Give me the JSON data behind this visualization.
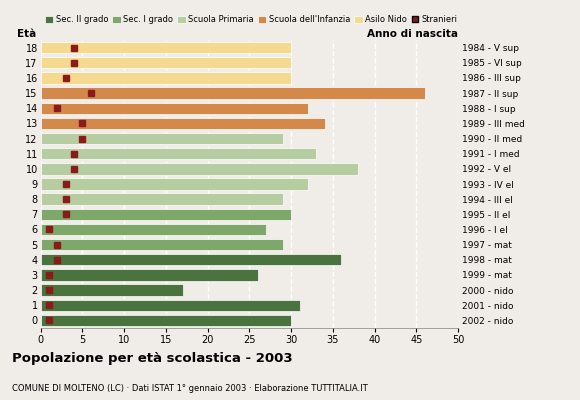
{
  "ages": [
    18,
    17,
    16,
    15,
    14,
    13,
    12,
    11,
    10,
    9,
    8,
    7,
    6,
    5,
    4,
    3,
    2,
    1,
    0
  ],
  "years": [
    "1984 - V sup",
    "1985 - VI sup",
    "1986 - III sup",
    "1987 - II sup",
    "1988 - I sup",
    "1989 - III med",
    "1990 - II med",
    "1991 - I med",
    "1992 - V el",
    "1993 - IV el",
    "1994 - III el",
    "1995 - II el",
    "1996 - I el",
    "1997 - mat",
    "1998 - mat",
    "1999 - mat",
    "2000 - nido",
    "2001 - nido",
    "2002 - nido"
  ],
  "values": [
    30,
    31,
    17,
    26,
    36,
    29,
    27,
    30,
    29,
    32,
    38,
    33,
    29,
    34,
    32,
    46,
    30,
    30,
    30
  ],
  "stranieri": [
    1,
    1,
    1,
    1,
    2,
    2,
    1,
    3,
    3,
    3,
    4,
    4,
    5,
    5,
    2,
    6,
    3,
    4,
    4
  ],
  "bar_colors": [
    "#4a7340",
    "#4a7340",
    "#4a7340",
    "#4a7340",
    "#4a7340",
    "#7da869",
    "#7da869",
    "#7da869",
    "#b5cda0",
    "#b5cda0",
    "#b5cda0",
    "#b5cda0",
    "#b5cda0",
    "#d4894a",
    "#d4894a",
    "#d4894a",
    "#f5d98e",
    "#f5d98e",
    "#f5d98e"
  ],
  "stranieri_color": "#8b1a1a",
  "legend_labels": [
    "Sec. II grado",
    "Sec. I grado",
    "Scuola Primaria",
    "Scuola dell'Infanzia",
    "Asilo Nido",
    "Stranieri"
  ],
  "legend_colors": [
    "#4a7340",
    "#7da869",
    "#b5cda0",
    "#d4894a",
    "#f5d98e",
    "#8b1a1a"
  ],
  "title": "Popolazione per età scolastica - 2003",
  "subtitle": "COMUNE DI MOLTENO (LC) · Dati ISTAT 1° gennaio 2003 · Elaborazione TUTTITALIA.IT",
  "ylabel_eta": "Età",
  "ylabel_anno": "Anno di nascita",
  "xlim": [
    0,
    50
  ],
  "xticks": [
    0,
    5,
    10,
    15,
    20,
    25,
    30,
    35,
    40,
    45,
    50
  ],
  "background_color": "#f0ede8",
  "bar_height": 0.75
}
